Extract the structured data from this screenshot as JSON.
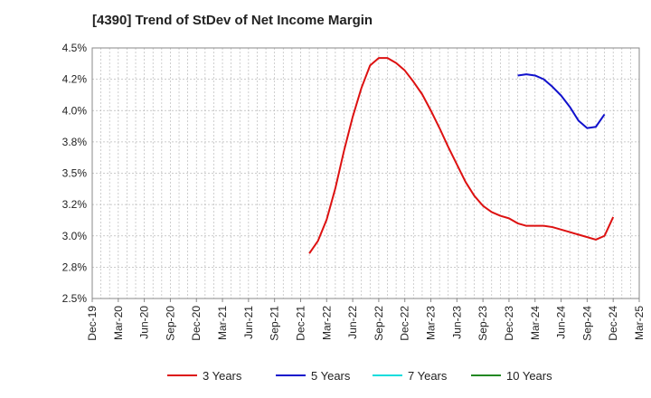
{
  "chart_data": {
    "type": "line",
    "title": "[4390]  Trend of StDev of Net Income Margin",
    "xlabel": "",
    "ylabel": "",
    "ylim": [
      2.5,
      4.5
    ],
    "yticks": [
      "2.5%",
      "2.8%",
      "3.0%",
      "3.2%",
      "3.5%",
      "3.8%",
      "4.0%",
      "4.2%",
      "4.5%"
    ],
    "ytick_values": [
      2.5,
      2.75,
      3.0,
      3.25,
      3.5,
      3.75,
      4.0,
      4.25,
      4.5
    ],
    "xticks": [
      "Dec-19",
      "Mar-20",
      "Jun-20",
      "Sep-20",
      "Dec-20",
      "Mar-21",
      "Jun-21",
      "Sep-21",
      "Dec-21",
      "Mar-22",
      "Jun-22",
      "Sep-22",
      "Dec-22",
      "Mar-23",
      "Jun-23",
      "Sep-23",
      "Dec-23",
      "Mar-24",
      "Jun-24",
      "Sep-24",
      "Dec-24",
      "Mar-25"
    ],
    "grid": true,
    "legend_position": "bottom",
    "series": [
      {
        "name": "3 Years",
        "color": "#dd1111",
        "start_index": 25,
        "values": [
          2.86,
          2.96,
          3.13,
          3.38,
          3.68,
          3.95,
          4.18,
          4.36,
          4.42,
          4.42,
          4.38,
          4.32,
          4.23,
          4.13,
          4.0,
          3.86,
          3.71,
          3.57,
          3.43,
          3.32,
          3.24,
          3.19,
          3.16,
          3.14,
          3.1,
          3.08,
          3.08,
          3.08,
          3.07,
          3.05,
          3.03,
          3.01,
          2.99,
          2.97,
          3.0,
          3.15
        ]
      },
      {
        "name": "5 Years",
        "color": "#1111cc",
        "start_index": 49,
        "values": [
          4.28,
          4.29,
          4.28,
          4.25,
          4.19,
          4.12,
          4.03,
          3.92,
          3.86,
          3.87,
          3.97
        ]
      },
      {
        "name": "7 Years",
        "color": "#11dddd",
        "start_index": 0,
        "values": []
      },
      {
        "name": "10 Years",
        "color": "#228822",
        "start_index": 0,
        "values": []
      }
    ]
  }
}
